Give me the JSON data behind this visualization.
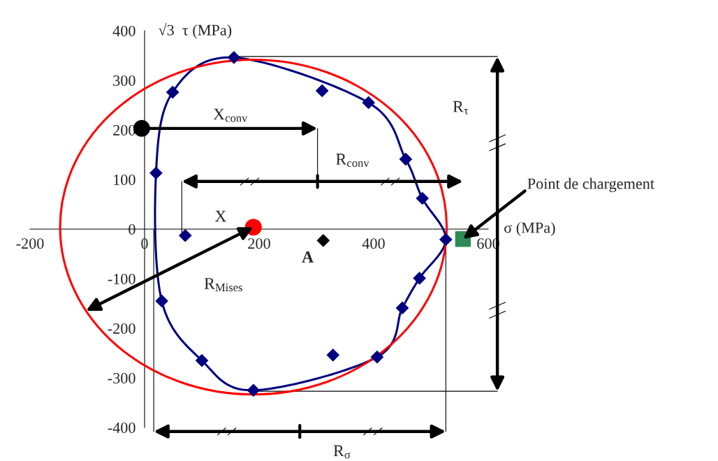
{
  "chart_data": {
    "type": "scatter",
    "xlabel": "σ (MPa)",
    "ylabel": "√3  τ (MPa)",
    "xlim": [
      -200,
      600
    ],
    "ylim": [
      -400,
      400
    ],
    "xticks": [
      -200,
      0,
      200,
      400,
      600
    ],
    "yticks": [
      -400,
      -300,
      -200,
      -100,
      0,
      100,
      200,
      300,
      400
    ],
    "legend": false,
    "ref_lines": [
      {
        "axis": "y",
        "value": 348,
        "color": "#000000"
      },
      {
        "axis": "y",
        "value": -327,
        "color": "#000000"
      },
      {
        "axis": "x",
        "value": 16,
        "color": "#000000"
      },
      {
        "axis": "x",
        "value": 526,
        "color": "#000000"
      },
      {
        "axis": "x",
        "value": 65,
        "color": "#000000"
      },
      {
        "axis": "x",
        "value": 302,
        "color": "#000000"
      }
    ],
    "series": [
      {
        "marker": "diamond",
        "color": "#000080",
        "x": [
          156,
          49,
          310,
          391,
          20,
          456,
          485,
          71,
          526,
          480,
          450,
          30,
          100,
          329,
          406,
          190
        ],
        "values": [
          346,
          276,
          279,
          255,
          113,
          141,
          62,
          -13,
          -21,
          -99,
          -159,
          -145,
          -265,
          -254,
          -258,
          -325
        ]
      },
      {
        "marker": "circle",
        "color": "#ff0000",
        "x": [
          190
        ],
        "values": [
          4
        ]
      },
      {
        "marker": "circle",
        "color": "#000000",
        "x": [
          -5
        ],
        "values": [
          203
        ]
      },
      {
        "marker": "diamond",
        "color": "#000000",
        "x": [
          312
        ],
        "values": [
          -23
        ]
      },
      {
        "marker": "square",
        "color": "#2e8b57",
        "x": [
          556
        ],
        "values": [
          -20
        ]
      }
    ],
    "annotations": [
      "X$_{conv}$",
      "R$_{conv}$",
      "R$_{τ}$",
      {
        "text": "Point de chargement",
        "x": 556,
        "y": -20
      },
      "X",
      "A",
      "R$_{Mises}$",
      "R$_{σ}$"
    ]
  }
}
